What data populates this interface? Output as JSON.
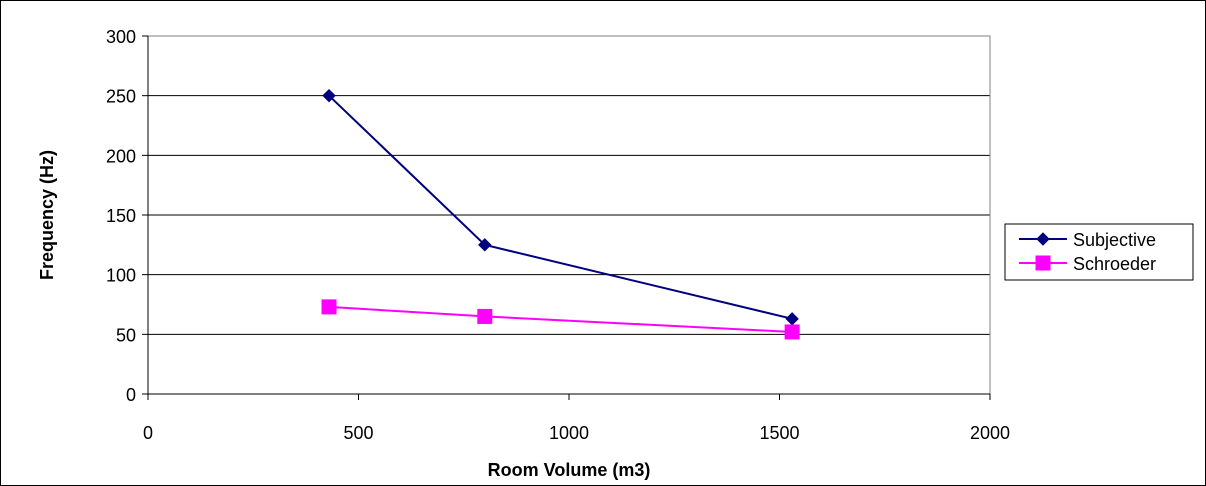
{
  "chart_data": {
    "type": "line",
    "xlabel": "Room Volume (m3)",
    "ylabel": "Frequency (Hz)",
    "xlim": [
      0,
      2000
    ],
    "ylim": [
      0,
      300
    ],
    "xticks": [
      0,
      500,
      1000,
      1500,
      2000
    ],
    "yticks": [
      0,
      50,
      100,
      150,
      200,
      250,
      300
    ],
    "grid": "horizontal",
    "legend_position": "right",
    "series": [
      {
        "name": "Subjective",
        "color": "#000080",
        "marker": "diamond",
        "x": [
          430,
          800,
          1530
        ],
        "y": [
          250,
          125,
          63
        ]
      },
      {
        "name": "Schroeder",
        "color": "#FF00FF",
        "marker": "square",
        "x": [
          430,
          800,
          1530
        ],
        "y": [
          73,
          65,
          52
        ]
      }
    ]
  }
}
